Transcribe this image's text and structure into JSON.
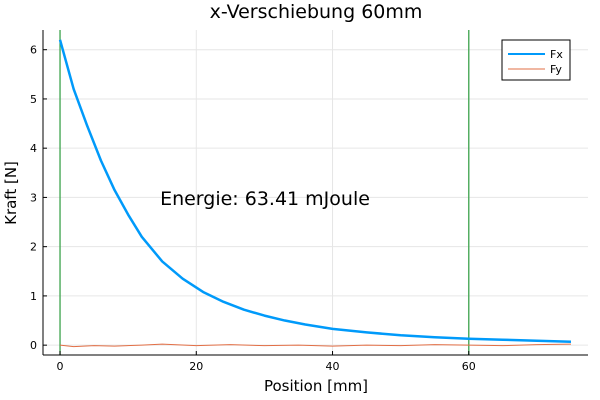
{
  "chart_data": {
    "type": "line",
    "title": "x-Verschiebung 60mm",
    "xlabel": "Position [mm]",
    "ylabel": "Kraft [N]",
    "xlim": [
      -2.5,
      77.5
    ],
    "ylim": [
      -0.2,
      6.4
    ],
    "xticks": [
      0,
      20,
      40,
      60
    ],
    "yticks": [
      0,
      1,
      2,
      3,
      4,
      5,
      6
    ],
    "grid": true,
    "legend_position": "top-right",
    "annotation": "Energie: 63.41 mJoule",
    "vlines": [
      0,
      60
    ],
    "series": [
      {
        "name": "Fx",
        "color": "#009AFA",
        "x": [
          0,
          2,
          4,
          6,
          8,
          10,
          12,
          15,
          18,
          21,
          24,
          27,
          30,
          33,
          36,
          40,
          45,
          50,
          55,
          60,
          65,
          70,
          75
        ],
        "y": [
          6.2,
          5.2,
          4.45,
          3.75,
          3.15,
          2.65,
          2.2,
          1.7,
          1.35,
          1.08,
          0.88,
          0.72,
          0.6,
          0.5,
          0.42,
          0.33,
          0.26,
          0.2,
          0.16,
          0.13,
          0.11,
          0.09,
          0.07
        ]
      },
      {
        "name": "Fy",
        "color": "#E26F46",
        "x": [
          0,
          2,
          5,
          8,
          12,
          15,
          20,
          25,
          30,
          35,
          40,
          45,
          50,
          55,
          60,
          65,
          70,
          75
        ],
        "y": [
          0.0,
          -0.03,
          -0.01,
          -0.02,
          0.0,
          0.02,
          -0.01,
          0.01,
          -0.01,
          0.0,
          -0.02,
          0.0,
          -0.01,
          0.01,
          0.0,
          -0.01,
          0.01,
          0.02
        ]
      }
    ]
  }
}
